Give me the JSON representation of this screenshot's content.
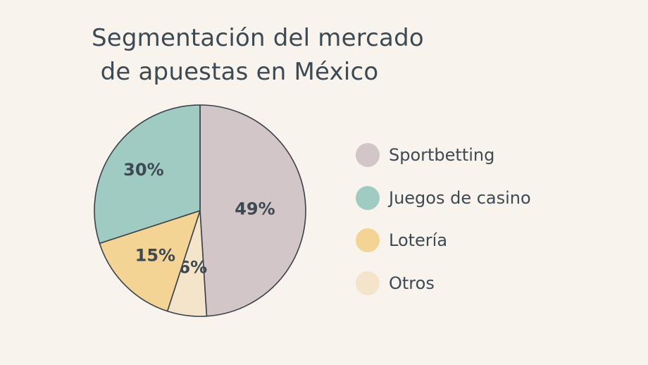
{
  "chart_data": {
    "type": "pie",
    "title_lines": [
      "Segmentación del mercado",
      "de apuestas en México"
    ],
    "slices": [
      {
        "label": "Sportbetting",
        "value": 49,
        "value_label": "49%",
        "color": "#d2c6c9"
      },
      {
        "label": "Juegos de casino",
        "value": 30,
        "value_label": "30%",
        "color": "#9fcbc2"
      },
      {
        "label": "Lotería",
        "value": 15,
        "value_label": "15%",
        "color": "#f3d495"
      },
      {
        "label": "Otros",
        "value": 6,
        "value_label": "6%",
        "color": "#f4e4ca"
      }
    ],
    "legend_position": "right",
    "slice_order_clockwise_from_top": [
      "Sportbetting",
      "Otros",
      "Lotería",
      "Juegos de casino"
    ]
  }
}
